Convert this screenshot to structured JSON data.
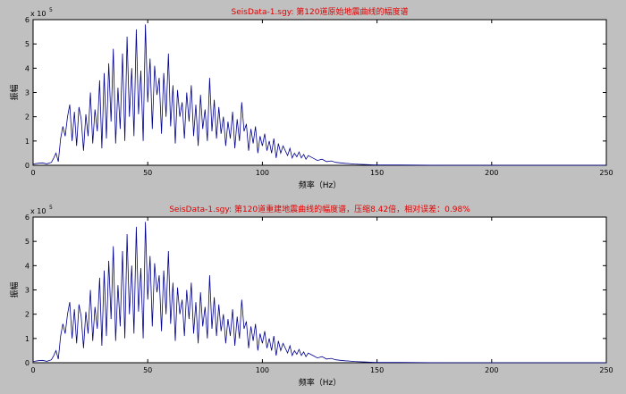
{
  "colors": {
    "line": "#00008b",
    "title": "#e00000",
    "figure_bg": "#c0c0c0",
    "axes_bg": "#ffffff"
  },
  "chart_data": [
    {
      "type": "line",
      "title": "SeisData-1.sgy: 第120道原始地震曲线的幅度谱",
      "xlabel": "频率（Hz）",
      "ylabel": "振幅",
      "y_exponent_label": "x 10",
      "y_exponent_power": "5",
      "xlim": [
        0,
        250
      ],
      "ylim": [
        0,
        6
      ],
      "y_scale": 100000,
      "xticks": [
        "0",
        "50",
        "100",
        "150",
        "200",
        "250"
      ],
      "yticks": [
        "0",
        "1",
        "2",
        "3",
        "4",
        "5",
        "6"
      ],
      "grid": false,
      "series": [
        {
          "x": [
            0,
            2,
            4,
            6,
            8,
            9,
            10,
            11,
            12,
            13,
            14,
            15,
            16,
            17,
            18,
            19,
            20,
            21,
            22,
            23,
            24,
            25,
            26,
            27,
            28,
            29,
            30,
            31,
            32,
            33,
            34,
            35,
            36,
            37,
            38,
            39,
            40,
            41,
            42,
            43,
            44,
            45,
            46,
            47,
            48,
            49,
            50,
            51,
            52,
            53,
            54,
            55,
            56,
            57,
            58,
            59,
            60,
            61,
            62,
            63,
            64,
            65,
            66,
            67,
            68,
            69,
            70,
            71,
            72,
            73,
            74,
            75,
            76,
            77,
            78,
            79,
            80,
            81,
            82,
            83,
            84,
            85,
            86,
            87,
            88,
            89,
            90,
            91,
            92,
            93,
            94,
            95,
            96,
            97,
            98,
            99,
            100,
            101,
            102,
            103,
            104,
            105,
            106,
            107,
            108,
            109,
            110,
            111,
            112,
            113,
            114,
            115,
            116,
            117,
            118,
            119,
            120,
            122,
            124,
            126,
            128,
            130,
            132,
            134,
            136,
            138,
            140,
            142,
            145,
            148,
            150,
            160,
            180,
            200,
            220,
            240,
            250
          ],
          "values": [
            0.05,
            0.08,
            0.1,
            0.06,
            0.12,
            0.3,
            0.5,
            0.15,
            1.1,
            1.6,
            1.2,
            2.0,
            2.5,
            1.0,
            2.2,
            0.8,
            2.4,
            1.9,
            0.6,
            2.1,
            1.2,
            3.0,
            0.9,
            2.3,
            1.4,
            3.5,
            0.7,
            3.8,
            1.1,
            4.2,
            1.8,
            4.8,
            0.9,
            3.2,
            1.5,
            4.6,
            1.0,
            5.3,
            2.0,
            4.0,
            1.2,
            5.6,
            2.1,
            3.9,
            1.0,
            5.8,
            2.6,
            4.4,
            1.5,
            4.1,
            2.9,
            3.6,
            1.3,
            3.8,
            2.0,
            4.6,
            1.6,
            3.3,
            0.9,
            3.1,
            2.0,
            2.6,
            1.1,
            3.0,
            1.8,
            3.3,
            1.2,
            2.5,
            0.8,
            2.9,
            1.5,
            2.3,
            1.0,
            3.6,
            1.4,
            2.7,
            1.1,
            2.4,
            1.3,
            2.0,
            0.8,
            1.8,
            1.1,
            2.2,
            0.7,
            1.9,
            1.0,
            2.6,
            1.4,
            1.7,
            0.6,
            1.5,
            0.9,
            1.6,
            0.5,
            1.2,
            0.8,
            1.3,
            0.6,
            1.0,
            0.5,
            1.1,
            0.3,
            0.9,
            0.5,
            0.8,
            0.6,
            0.4,
            0.7,
            0.3,
            0.5,
            0.35,
            0.55,
            0.3,
            0.45,
            0.25,
            0.4,
            0.3,
            0.2,
            0.25,
            0.15,
            0.18,
            0.12,
            0.1,
            0.08,
            0.07,
            0.05,
            0.04,
            0.03,
            0.02,
            0.01,
            0.01,
            0.0,
            0.0,
            0.0,
            0.0,
            0.0
          ]
        }
      ]
    },
    {
      "type": "line",
      "title": "SeisData-1.sgy: 第120道重建地震曲线的幅度谱，压缩8.42倍，相对误差：0.98%",
      "xlabel": "频率（Hz）",
      "ylabel": "振幅",
      "y_exponent_label": "x 10",
      "y_exponent_power": "5",
      "xlim": [
        0,
        250
      ],
      "ylim": [
        0,
        6
      ],
      "y_scale": 100000,
      "xticks": [
        "0",
        "50",
        "100",
        "150",
        "200",
        "250"
      ],
      "yticks": [
        "0",
        "1",
        "2",
        "3",
        "4",
        "5",
        "6"
      ],
      "grid": false,
      "series": [
        {
          "x": [
            0,
            2,
            4,
            6,
            8,
            9,
            10,
            11,
            12,
            13,
            14,
            15,
            16,
            17,
            18,
            19,
            20,
            21,
            22,
            23,
            24,
            25,
            26,
            27,
            28,
            29,
            30,
            31,
            32,
            33,
            34,
            35,
            36,
            37,
            38,
            39,
            40,
            41,
            42,
            43,
            44,
            45,
            46,
            47,
            48,
            49,
            50,
            51,
            52,
            53,
            54,
            55,
            56,
            57,
            58,
            59,
            60,
            61,
            62,
            63,
            64,
            65,
            66,
            67,
            68,
            69,
            70,
            71,
            72,
            73,
            74,
            75,
            76,
            77,
            78,
            79,
            80,
            81,
            82,
            83,
            84,
            85,
            86,
            87,
            88,
            89,
            90,
            91,
            92,
            93,
            94,
            95,
            96,
            97,
            98,
            99,
            100,
            101,
            102,
            103,
            104,
            105,
            106,
            107,
            108,
            109,
            110,
            111,
            112,
            113,
            114,
            115,
            116,
            117,
            118,
            119,
            120,
            122,
            124,
            126,
            128,
            130,
            132,
            134,
            136,
            138,
            140,
            142,
            145,
            148,
            150,
            160,
            180,
            200,
            220,
            240,
            250
          ],
          "values": [
            0.05,
            0.08,
            0.1,
            0.06,
            0.12,
            0.3,
            0.5,
            0.15,
            1.1,
            1.6,
            1.2,
            2.0,
            2.5,
            1.0,
            2.2,
            0.8,
            2.4,
            1.9,
            0.6,
            2.1,
            1.2,
            3.0,
            0.9,
            2.3,
            1.4,
            3.5,
            0.7,
            3.8,
            1.1,
            4.2,
            1.8,
            4.8,
            0.9,
            3.2,
            1.5,
            4.6,
            1.0,
            5.3,
            2.0,
            4.0,
            1.2,
            5.6,
            2.1,
            3.9,
            1.0,
            5.8,
            2.6,
            4.4,
            1.5,
            4.1,
            2.9,
            3.6,
            1.3,
            3.8,
            2.0,
            4.6,
            1.6,
            3.3,
            0.9,
            3.1,
            2.0,
            2.6,
            1.1,
            3.0,
            1.8,
            3.3,
            1.2,
            2.5,
            0.8,
            2.9,
            1.5,
            2.3,
            1.0,
            3.6,
            1.4,
            2.7,
            1.1,
            2.4,
            1.3,
            2.0,
            0.8,
            1.8,
            1.1,
            2.2,
            0.7,
            1.9,
            1.0,
            2.6,
            1.4,
            1.7,
            0.6,
            1.5,
            0.9,
            1.6,
            0.5,
            1.2,
            0.8,
            1.3,
            0.6,
            1.0,
            0.5,
            1.1,
            0.3,
            0.9,
            0.5,
            0.8,
            0.6,
            0.4,
            0.7,
            0.3,
            0.5,
            0.35,
            0.55,
            0.3,
            0.45,
            0.25,
            0.4,
            0.3,
            0.2,
            0.25,
            0.15,
            0.18,
            0.12,
            0.1,
            0.08,
            0.07,
            0.05,
            0.04,
            0.03,
            0.02,
            0.01,
            0.01,
            0.0,
            0.0,
            0.0,
            0.0,
            0.0
          ]
        }
      ]
    }
  ]
}
